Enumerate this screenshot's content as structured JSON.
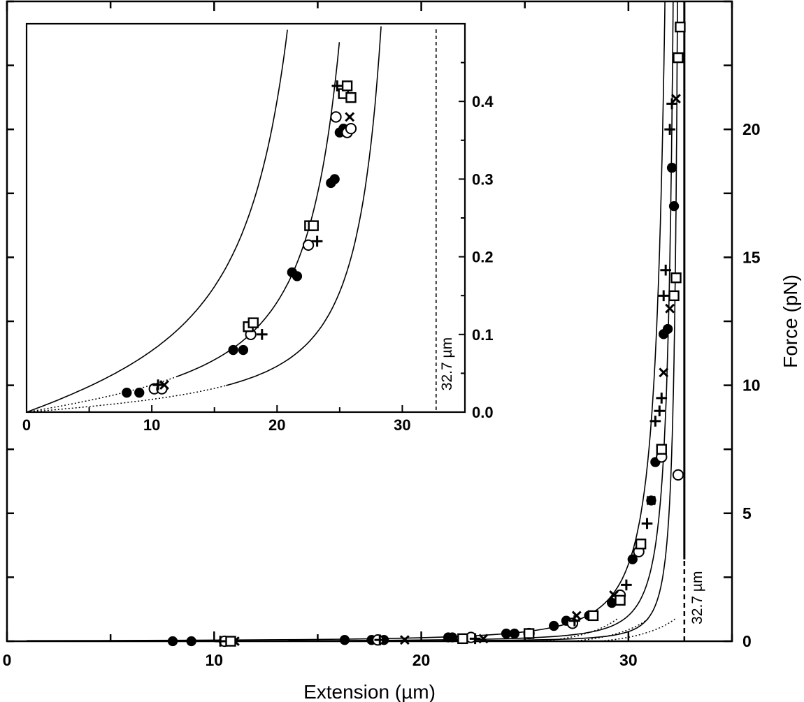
{
  "chart_data": [
    {
      "type": "scatter",
      "title": "",
      "xlabel": "Extension (µm)",
      "ylabel": "Force (pN)",
      "xlim": [
        0,
        35
      ],
      "ylim": [
        0,
        25
      ],
      "x_ticks": [
        "0",
        "10",
        "20",
        "30"
      ],
      "y_ticks": [
        "0",
        "5",
        "10",
        "15",
        "20"
      ],
      "y_axis_side": "right",
      "grid": false,
      "legend": "none",
      "annotations": [
        {
          "text": "32.7 µm",
          "x": 32.7
        }
      ],
      "series": [
        {
          "marker": "filled-circle",
          "points": [
            [
              8.0,
              0.0
            ],
            [
              8.9,
              0.0
            ],
            [
              10.7,
              0.0
            ],
            [
              16.3,
              0.05
            ],
            [
              17.6,
              0.05
            ],
            [
              18.2,
              0.05
            ],
            [
              21.3,
              0.15
            ],
            [
              21.5,
              0.15
            ],
            [
              24.1,
              0.3
            ],
            [
              24.5,
              0.3
            ],
            [
              26.4,
              0.6
            ],
            [
              27.0,
              0.8
            ],
            [
              28.1,
              1.0
            ],
            [
              29.2,
              1.5
            ],
            [
              30.2,
              3.2
            ],
            [
              31.1,
              5.5
            ],
            [
              31.3,
              7.0
            ],
            [
              31.7,
              12.0
            ],
            [
              31.9,
              12.2
            ],
            [
              32.2,
              17.0
            ],
            [
              32.1,
              18.5
            ]
          ]
        },
        {
          "marker": "open-circle",
          "points": [
            [
              10.5,
              0.0
            ],
            [
              17.9,
              0.05
            ],
            [
              22.4,
              0.15
            ],
            [
              25.2,
              0.3
            ],
            [
              27.3,
              0.7
            ],
            [
              29.6,
              1.8
            ],
            [
              30.5,
              3.5
            ],
            [
              31.6,
              7.2
            ],
            [
              32.4,
              6.5
            ]
          ]
        },
        {
          "marker": "plus",
          "points": [
            [
              10.3,
              0.0
            ],
            [
              18.0,
              0.05
            ],
            [
              22.6,
              0.1
            ],
            [
              27.4,
              0.8
            ],
            [
              29.9,
              2.2
            ],
            [
              30.9,
              4.6
            ],
            [
              31.3,
              8.6
            ],
            [
              31.5,
              9.0
            ],
            [
              31.6,
              9.5
            ],
            [
              31.7,
              13.5
            ],
            [
              31.8,
              14.5
            ],
            [
              32.0,
              20.0
            ],
            [
              32.1,
              21.0
            ]
          ]
        },
        {
          "marker": "cross",
          "points": [
            [
              11.0,
              0.0
            ],
            [
              19.2,
              0.05
            ],
            [
              23.0,
              0.1
            ],
            [
              27.5,
              1.0
            ],
            [
              29.3,
              1.8
            ],
            [
              31.1,
              5.5
            ],
            [
              31.7,
              10.5
            ],
            [
              32.0,
              13.0
            ],
            [
              32.3,
              21.2
            ]
          ]
        },
        {
          "marker": "open-square",
          "points": [
            [
              10.8,
              0.0
            ],
            [
              22.0,
              0.1
            ],
            [
              25.2,
              0.3
            ],
            [
              28.3,
              1.0
            ],
            [
              29.6,
              1.6
            ],
            [
              30.6,
              3.8
            ],
            [
              31.6,
              7.5
            ],
            [
              32.2,
              13.5
            ],
            [
              32.3,
              14.2
            ],
            [
              32.4,
              22.8
            ],
            [
              32.5,
              24.0
            ]
          ]
        }
      ]
    },
    {
      "type": "scatter",
      "title": "",
      "xlabel": "",
      "ylabel": "",
      "xlim": [
        0,
        35
      ],
      "ylim": [
        0,
        0.5
      ],
      "x_ticks": [
        "0",
        "10",
        "20",
        "30"
      ],
      "y_ticks": [
        "0.0",
        "0.1",
        "0.2",
        "0.3",
        "0.4"
      ],
      "y_axis_side": "right",
      "grid": false,
      "legend": "none",
      "annotations": [
        {
          "text": "32.7 µm",
          "x": 32.7
        }
      ],
      "series": [
        {
          "marker": "filled-circle",
          "points": [
            [
              8.0,
              0.025
            ],
            [
              9.0,
              0.025
            ],
            [
              16.5,
              0.08
            ],
            [
              17.3,
              0.08
            ],
            [
              21.2,
              0.18
            ],
            [
              21.6,
              0.175
            ],
            [
              24.3,
              0.295
            ],
            [
              24.6,
              0.3
            ],
            [
              25.0,
              0.36
            ],
            [
              25.3,
              0.365
            ]
          ]
        },
        {
          "marker": "open-circle",
          "points": [
            [
              10.2,
              0.03
            ],
            [
              10.8,
              0.03
            ],
            [
              17.9,
              0.1
            ],
            [
              22.5,
              0.215
            ],
            [
              24.7,
              0.38
            ],
            [
              25.6,
              0.36
            ],
            [
              25.9,
              0.365
            ]
          ]
        },
        {
          "marker": "plus",
          "points": [
            [
              10.5,
              0.035
            ],
            [
              18.8,
              0.1
            ],
            [
              23.2,
              0.22
            ],
            [
              24.8,
              0.42
            ]
          ]
        },
        {
          "marker": "cross",
          "points": [
            [
              11.0,
              0.035
            ],
            [
              25.8,
              0.38
            ]
          ]
        },
        {
          "marker": "open-square",
          "points": [
            [
              17.7,
              0.11
            ],
            [
              18.1,
              0.115
            ],
            [
              22.6,
              0.24
            ],
            [
              22.9,
              0.24
            ],
            [
              25.3,
              0.41
            ],
            [
              25.6,
              0.42
            ],
            [
              25.9,
              0.405
            ]
          ]
        }
      ]
    }
  ]
}
